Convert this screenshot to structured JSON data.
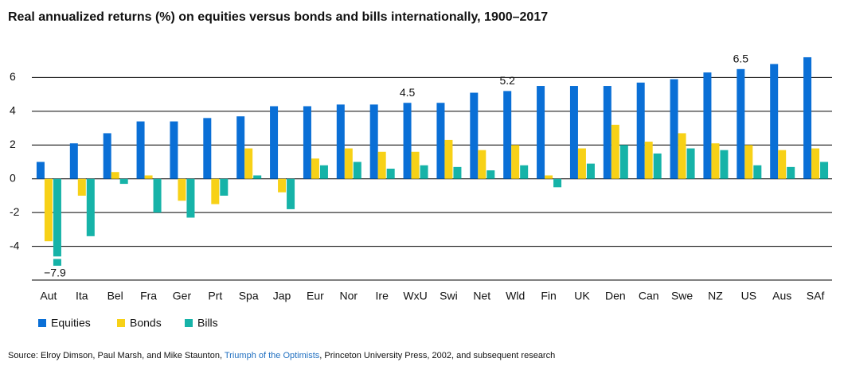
{
  "chart_data": {
    "type": "bar",
    "title": "Real annualized returns (%) on equities versus bonds and bills internationally, 1900–2017",
    "categories": [
      "Aut",
      "Ita",
      "Bel",
      "Fra",
      "Ger",
      "Prt",
      "Spa",
      "Jap",
      "Eur",
      "Nor",
      "Ire",
      "WxU",
      "Swi",
      "Net",
      "Wld",
      "Fin",
      "UK",
      "Den",
      "Can",
      "Swe",
      "NZ",
      "US",
      "Aus",
      "SAf"
    ],
    "series": [
      {
        "name": "Equities",
        "color": "#0a6fd6",
        "values": [
          1.0,
          2.1,
          2.7,
          3.4,
          3.4,
          3.6,
          3.7,
          4.3,
          4.3,
          4.4,
          4.4,
          4.5,
          4.5,
          5.1,
          5.2,
          5.5,
          5.5,
          5.5,
          5.7,
          5.9,
          6.3,
          6.5,
          6.8,
          7.2
        ],
        "value_labels": [
          null,
          null,
          null,
          null,
          null,
          null,
          null,
          null,
          null,
          null,
          null,
          "4.5",
          null,
          null,
          "5.2",
          null,
          null,
          null,
          null,
          null,
          null,
          "6.5",
          null,
          null
        ]
      },
      {
        "name": "Bonds",
        "color": "#f7d117",
        "values": [
          -3.7,
          -1.0,
          0.4,
          0.2,
          -1.3,
          -1.5,
          1.8,
          -0.8,
          1.2,
          1.8,
          1.6,
          1.6,
          2.3,
          1.7,
          2.0,
          0.2,
          1.8,
          3.2,
          2.2,
          2.7,
          2.1,
          2.0,
          1.7,
          1.8
        ]
      },
      {
        "name": "Bills",
        "color": "#16b3a8",
        "values": [
          -7.9,
          -3.4,
          -0.3,
          -2.0,
          -2.3,
          -1.0,
          0.2,
          -1.8,
          0.8,
          1.0,
          0.6,
          0.8,
          0.7,
          0.5,
          0.8,
          -0.5,
          0.9,
          2.0,
          1.5,
          1.8,
          1.7,
          0.8,
          0.7,
          1.0
        ],
        "value_labels": [
          "−7.9",
          null,
          null,
          null,
          null,
          null,
          null,
          null,
          null,
          null,
          null,
          null,
          null,
          null,
          null,
          null,
          null,
          null,
          null,
          null,
          null,
          null,
          null,
          null
        ]
      }
    ],
    "ylim": [
      -6,
      8
    ],
    "yticks": [
      {
        "value": -4,
        "label": "-4"
      },
      {
        "value": -2,
        "label": "-2"
      },
      0,
      2,
      4,
      6
    ],
    "grid": true,
    "legend": "bottom-left",
    "source": {
      "prefix": "Source: Elroy Dimson, Paul Marsh, and Mike Staunton, ",
      "link": "Triumph of the Optimists",
      "suffix": ", Princeton University Press, 2002, and subsequent research"
    }
  }
}
